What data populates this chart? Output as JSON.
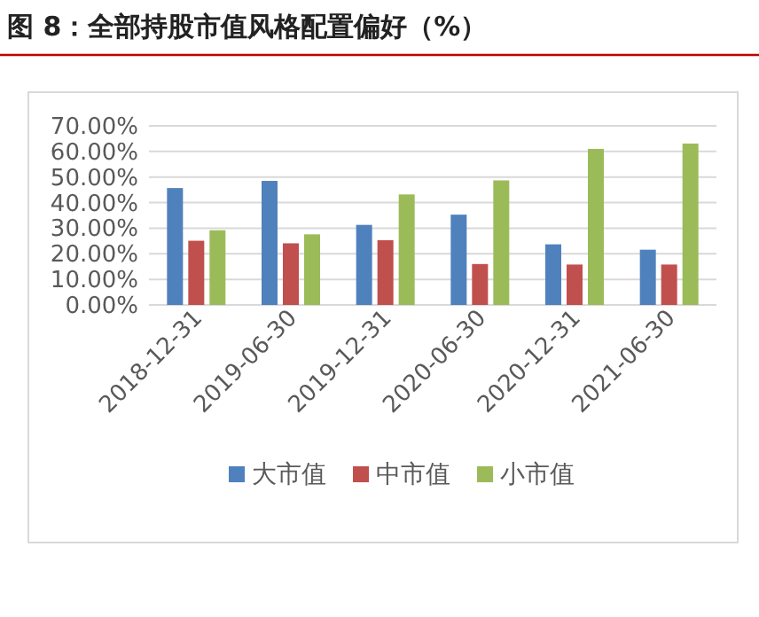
{
  "chart_data": {
    "type": "bar",
    "title": "图 8：全部持股市值风格配置偏好（%）",
    "categories": [
      "2018-12-31",
      "2019-06-30",
      "2019-12-31",
      "2020-06-30",
      "2020-12-31",
      "2021-06-30"
    ],
    "series": [
      {
        "name": "大市值",
        "color": "#4f81bd",
        "values": [
          45.7,
          48.5,
          31.3,
          35.3,
          23.7,
          21.6
        ]
      },
      {
        "name": "中市值",
        "color": "#c0504d",
        "values": [
          25.1,
          24.1,
          25.3,
          16.0,
          15.8,
          15.8
        ]
      },
      {
        "name": "小市值",
        "color": "#9bbb59",
        "values": [
          29.2,
          27.6,
          43.2,
          48.7,
          61.0,
          63.1
        ]
      }
    ],
    "ylim": [
      0,
      70
    ],
    "yticks": [
      {
        "value": 0,
        "label": "0.00%"
      },
      {
        "value": 10,
        "label": "10.00%"
      },
      {
        "value": 20,
        "label": "20.00%"
      },
      {
        "value": 30,
        "label": "30.00%"
      },
      {
        "value": 40,
        "label": "40.00%"
      },
      {
        "value": 50,
        "label": "50.00%"
      },
      {
        "value": 60,
        "label": "60.00%"
      },
      {
        "value": 70,
        "label": "70.00%"
      }
    ],
    "grid": "y",
    "legend": "bottom"
  }
}
